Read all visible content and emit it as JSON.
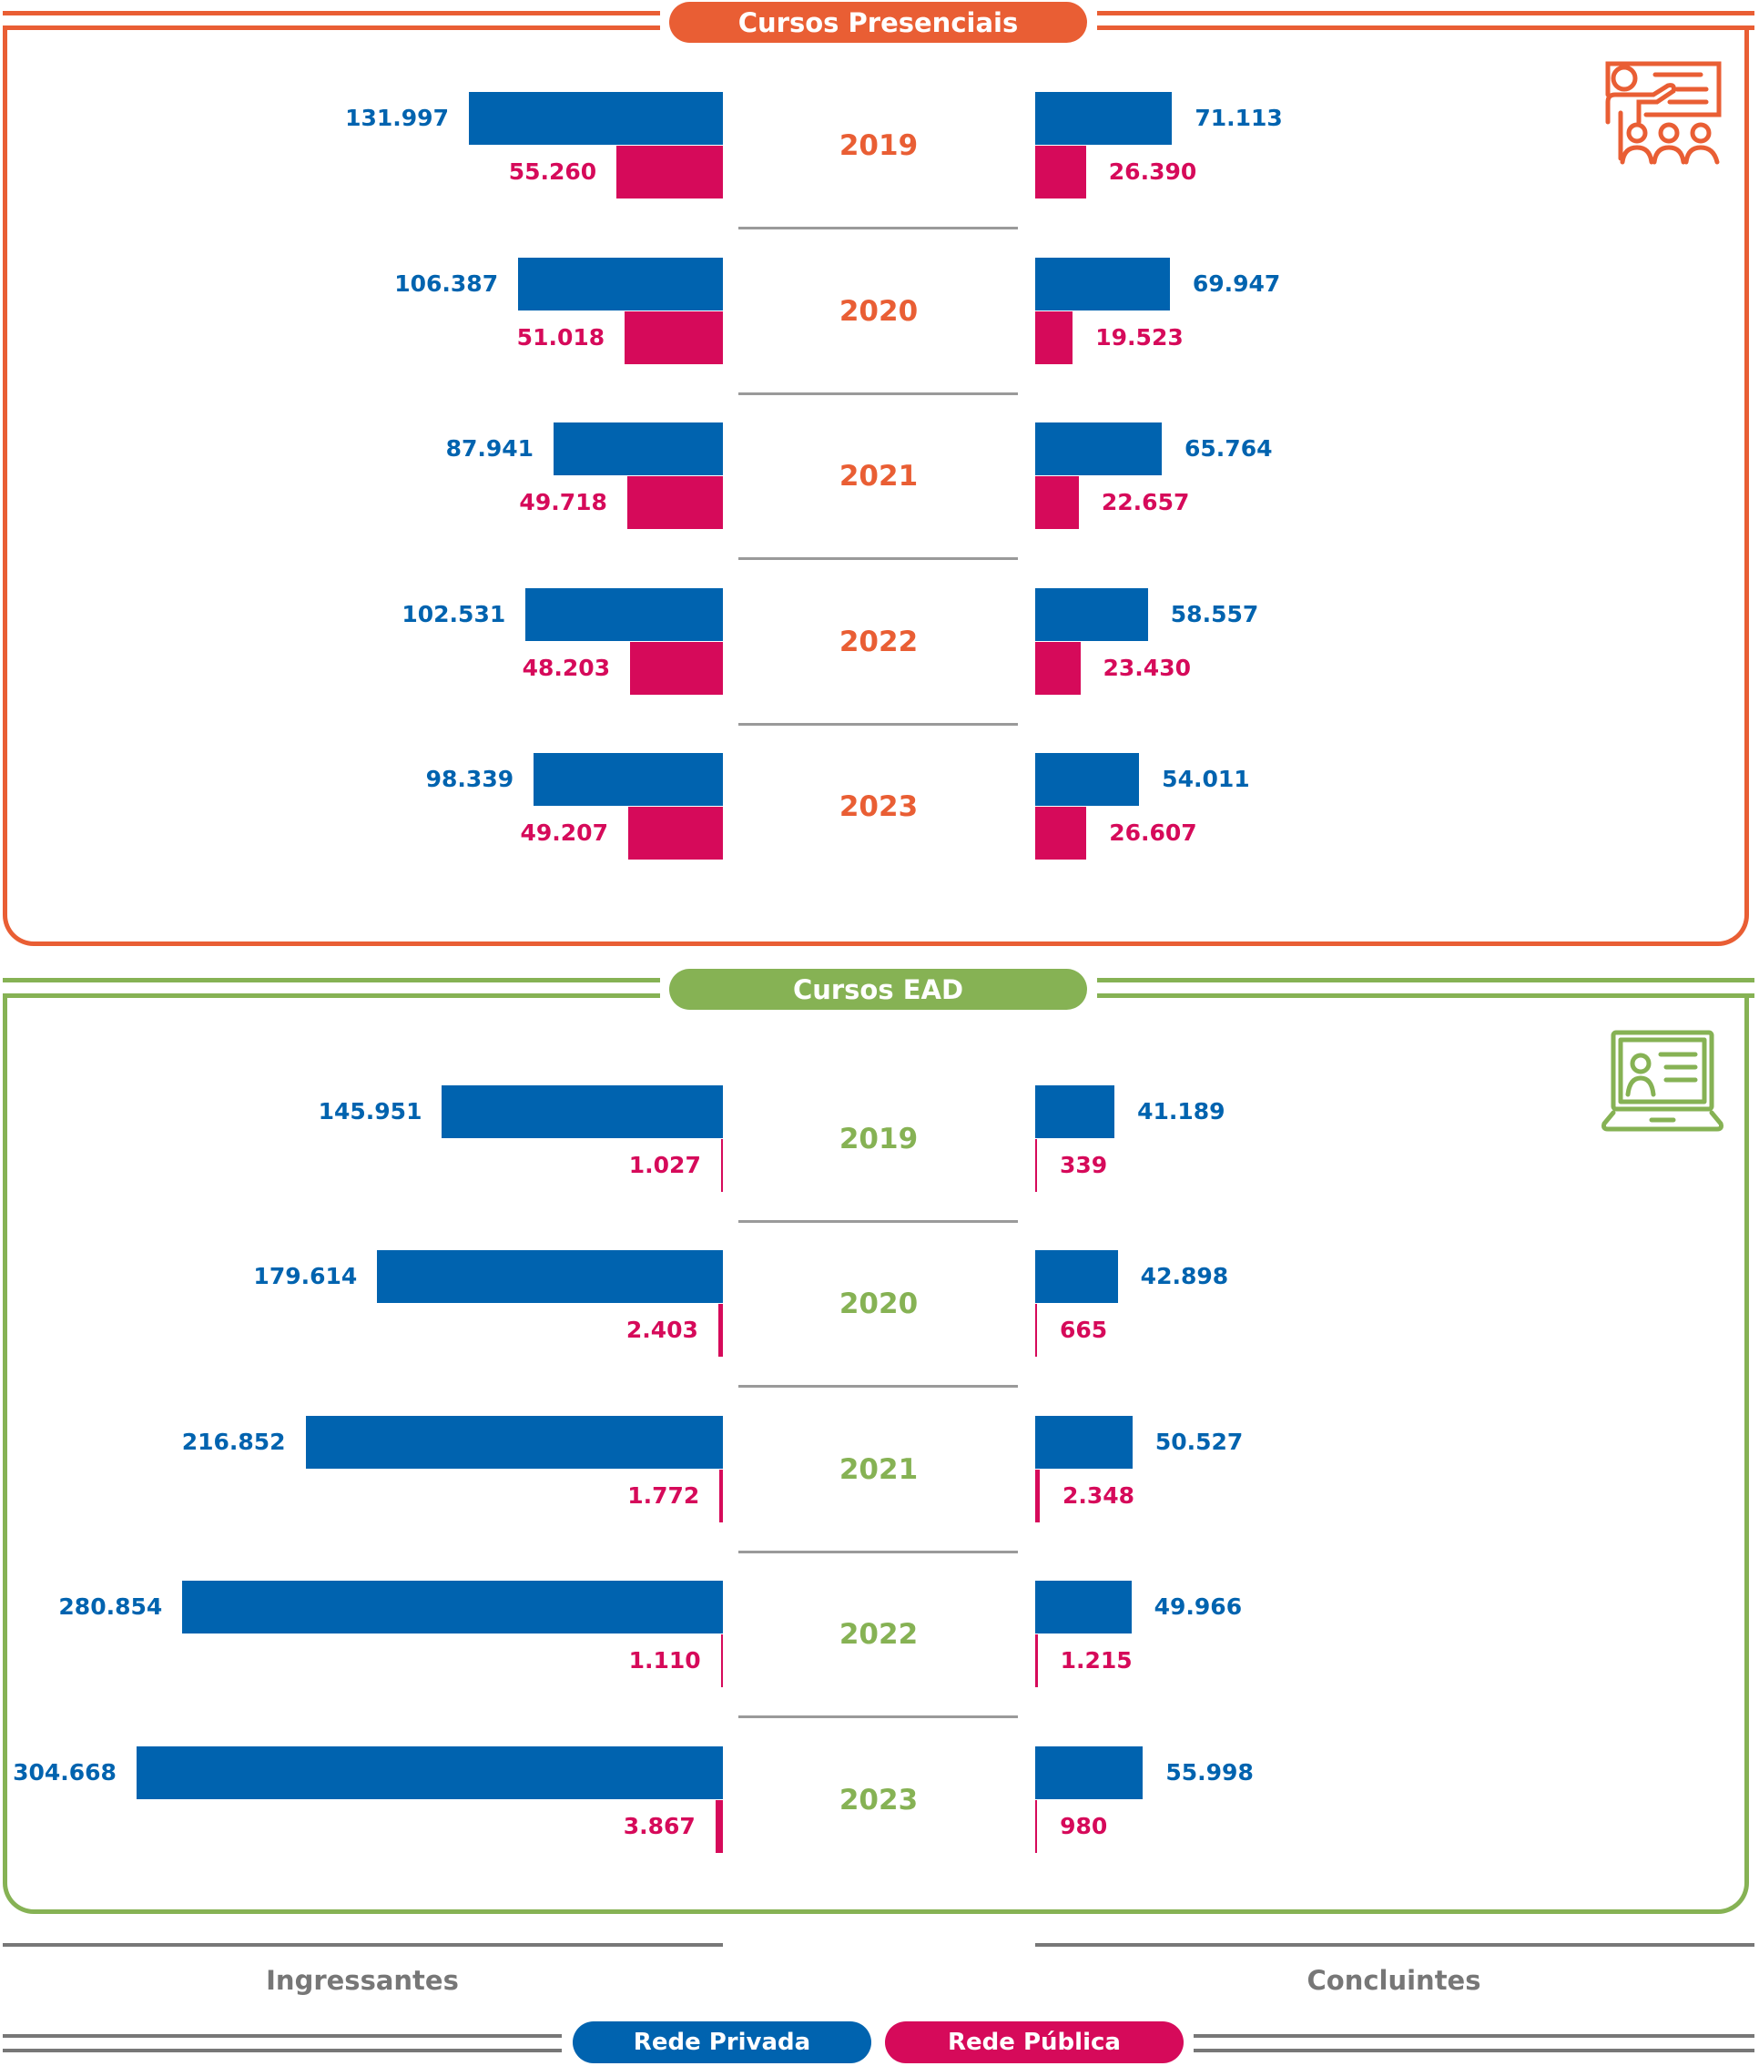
{
  "colors": {
    "privada": "#0063AF",
    "publica": "#D60A5A",
    "presencial": "#E95E34",
    "ead": "#86B254",
    "neutral": "#777777"
  },
  "chart_data": [
    {
      "type": "bar",
      "title": "Cursos Presenciais",
      "icon": "classroom-presentation-icon",
      "categories": [
        "2019",
        "2020",
        "2021",
        "2022",
        "2023"
      ],
      "ingressantes": {
        "rede_privada": [
          131997,
          106387,
          87941,
          102531,
          98339
        ],
        "rede_publica": [
          55260,
          51018,
          49718,
          48203,
          49207
        ]
      },
      "concluintes": {
        "rede_privada": [
          71113,
          69947,
          65764,
          58557,
          54011
        ],
        "rede_publica": [
          26390,
          19523,
          22657,
          23430,
          26607
        ]
      }
    },
    {
      "type": "bar",
      "title": "Cursos EAD",
      "icon": "laptop-online-class-icon",
      "categories": [
        "2019",
        "2020",
        "2021",
        "2022",
        "2023"
      ],
      "ingressantes": {
        "rede_privada": [
          145951,
          179614,
          216852,
          280854,
          304668
        ],
        "rede_publica": [
          1027,
          2403,
          1772,
          1110,
          3867
        ]
      },
      "concluintes": {
        "rede_privada": [
          41189,
          42898,
          50527,
          49966,
          55998
        ],
        "rede_publica": [
          339,
          665,
          2348,
          1215,
          980
        ]
      }
    }
  ],
  "footer": {
    "left_label": "Ingressantes",
    "right_label": "Concluintes"
  },
  "legend": {
    "privada": "Rede Privada",
    "publica": "Rede Pública"
  }
}
